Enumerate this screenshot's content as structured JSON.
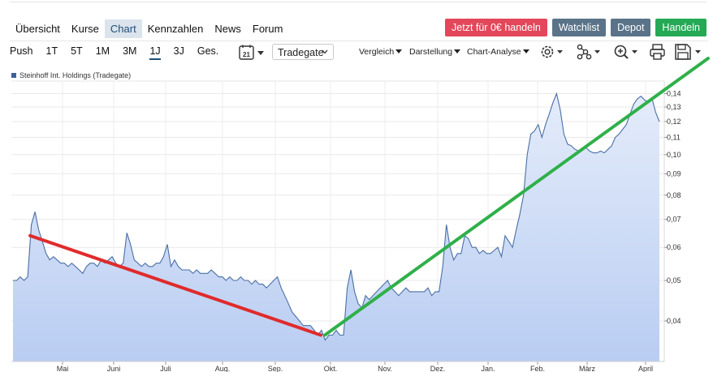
{
  "nav": {
    "tabs": [
      {
        "label": "Übersicht",
        "active": false
      },
      {
        "label": "Kurse",
        "active": false
      },
      {
        "label": "Chart",
        "active": true
      },
      {
        "label": "Kennzahlen",
        "active": false
      },
      {
        "label": "News",
        "active": false
      },
      {
        "label": "Forum",
        "active": false
      }
    ]
  },
  "actions": {
    "trade_free": "Jetzt für 0€ handeln",
    "watchlist": "Watchlist",
    "depot": "Depot",
    "handeln": "Handeln",
    "colors": {
      "trade_free": "#e3475a",
      "watchlist": "#5a7388",
      "depot": "#5a7388",
      "handeln": "#25a955"
    }
  },
  "toolbar": {
    "periods": [
      {
        "label": "Push",
        "active": false
      },
      {
        "label": "1T",
        "active": false
      },
      {
        "label": "5T",
        "active": false
      },
      {
        "label": "1M",
        "active": false
      },
      {
        "label": "3M",
        "active": false
      },
      {
        "label": "1J",
        "active": true
      },
      {
        "label": "3J",
        "active": false
      },
      {
        "label": "Ges.",
        "active": false
      }
    ],
    "calendar_day": "21",
    "exchange": "Tradegate",
    "menus": {
      "vergleich": "Vergleich",
      "darstellung": "Darstellung",
      "analyse": "Chart-Analyse"
    },
    "icons": [
      "settings-icon",
      "network-icon",
      "zoom-in-icon",
      "print-icon",
      "save-icon"
    ]
  },
  "chart_data": {
    "type": "area",
    "series": [
      {
        "name": "Steinhoff Int. Holdings (Tradegate)",
        "color": "#4a6fa5",
        "values": [
          0.05,
          0.05,
          0.051,
          0.05,
          0.051,
          0.068,
          0.073,
          0.066,
          0.062,
          0.058,
          0.056,
          0.057,
          0.056,
          0.055,
          0.055,
          0.054,
          0.055,
          0.054,
          0.053,
          0.052,
          0.054,
          0.055,
          0.055,
          0.054,
          0.056,
          0.055,
          0.056,
          0.057,
          0.055,
          0.054,
          0.055,
          0.065,
          0.061,
          0.056,
          0.055,
          0.054,
          0.055,
          0.054,
          0.054,
          0.055,
          0.055,
          0.057,
          0.061,
          0.054,
          0.056,
          0.054,
          0.053,
          0.053,
          0.053,
          0.052,
          0.053,
          0.052,
          0.052,
          0.052,
          0.053,
          0.052,
          0.051,
          0.051,
          0.05,
          0.051,
          0.05,
          0.05,
          0.051,
          0.05,
          0.05,
          0.049,
          0.05,
          0.049,
          0.049,
          0.048,
          0.049,
          0.05,
          0.051,
          0.048,
          0.046,
          0.044,
          0.042,
          0.041,
          0.04,
          0.039,
          0.039,
          0.039,
          0.038,
          0.037,
          0.038,
          0.036,
          0.037,
          0.037,
          0.038,
          0.037,
          0.037,
          0.048,
          0.053,
          0.047,
          0.044,
          0.043,
          0.046,
          0.045,
          0.046,
          0.047,
          0.048,
          0.049,
          0.05,
          0.048,
          0.047,
          0.046,
          0.047,
          0.048,
          0.047,
          0.047,
          0.047,
          0.047,
          0.047,
          0.048,
          0.046,
          0.047,
          0.047,
          0.054,
          0.068,
          0.06,
          0.056,
          0.058,
          0.058,
          0.064,
          0.063,
          0.06,
          0.06,
          0.058,
          0.059,
          0.058,
          0.058,
          0.059,
          0.06,
          0.057,
          0.064,
          0.062,
          0.06,
          0.066,
          0.072,
          0.08,
          0.1,
          0.112,
          0.114,
          0.118,
          0.11,
          0.118,
          0.125,
          0.133,
          0.14,
          0.128,
          0.112,
          0.106,
          0.105,
          0.103,
          0.102,
          0.103,
          0.104,
          0.102,
          0.101,
          0.101,
          0.102,
          0.101,
          0.103,
          0.105,
          0.11,
          0.112,
          0.115,
          0.118,
          0.125,
          0.132,
          0.136,
          0.138,
          0.135,
          0.134,
          0.136,
          0.126,
          0.12
        ]
      }
    ],
    "x_labels": [
      "Mai",
      "Juni",
      "Juli",
      "Aug.",
      "Sep.",
      "Okt.",
      "Nov.",
      "Dez.",
      "Jan.",
      "Feb.",
      "März",
      "April"
    ],
    "y_ticks": [
      "0,04",
      "0,05",
      "0,06",
      "0,07",
      "0,08",
      "0,09",
      "0,10",
      "0,11",
      "0,12",
      "0,13",
      "0,14"
    ],
    "y_scale": "log",
    "ylim": [
      0.032,
      0.15
    ],
    "grid": true,
    "trendlines": [
      {
        "color": "#e02b2b",
        "from_value": 0.064,
        "to_value": 0.037
      },
      {
        "color": "#2fb04a",
        "from_value": 0.037,
        "to_value": 0.17
      }
    ]
  }
}
